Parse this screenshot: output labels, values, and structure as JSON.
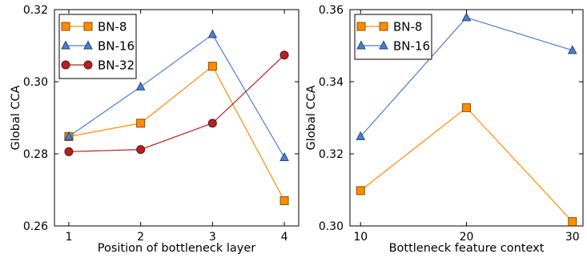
{
  "chart_data": [
    {
      "type": "line",
      "xlabel": "Position of bottleneck layer",
      "ylabel": "Global CCA",
      "x": [
        1,
        2,
        3,
        4
      ],
      "xlim": [
        0.8,
        4.2
      ],
      "ylim": [
        0.26,
        0.32
      ],
      "xticks": [
        "1",
        "2",
        "3",
        "4"
      ],
      "yticks": [
        "0.26",
        "0.28",
        "0.30",
        "0.32"
      ],
      "grid": false,
      "legend_position": "top-left",
      "series": [
        {
          "name": "BN-8",
          "values": [
            0.2848,
            0.2885,
            0.3043,
            0.267
          ],
          "color": "#ff8c00",
          "marker": "square"
        },
        {
          "name": "BN-16",
          "values": [
            0.2848,
            0.2986,
            0.3131,
            0.279
          ],
          "color": "#4a7fd0",
          "marker": "triangle"
        },
        {
          "name": "BN-32",
          "values": [
            0.2806,
            0.2812,
            0.2885,
            0.3074
          ],
          "color": "#b22222",
          "marker": "circle"
        }
      ]
    },
    {
      "type": "line",
      "xlabel": "Bottleneck feature context",
      "ylabel": "Global CCA",
      "x": [
        10,
        20,
        30
      ],
      "xlim": [
        9,
        31
      ],
      "ylim": [
        0.3,
        0.36
      ],
      "xticks": [
        "10",
        "20",
        "30"
      ],
      "yticks": [
        "0.30",
        "0.32",
        "0.34",
        "0.36"
      ],
      "grid": false,
      "legend_position": "top-left",
      "series": [
        {
          "name": "BN-8",
          "values": [
            0.3098,
            0.3328,
            0.3012
          ],
          "color": "#ff8c00",
          "marker": "square"
        },
        {
          "name": "BN-16",
          "values": [
            0.3248,
            0.3578,
            0.3487
          ],
          "color": "#4a7fd0",
          "marker": "triangle"
        }
      ]
    }
  ]
}
